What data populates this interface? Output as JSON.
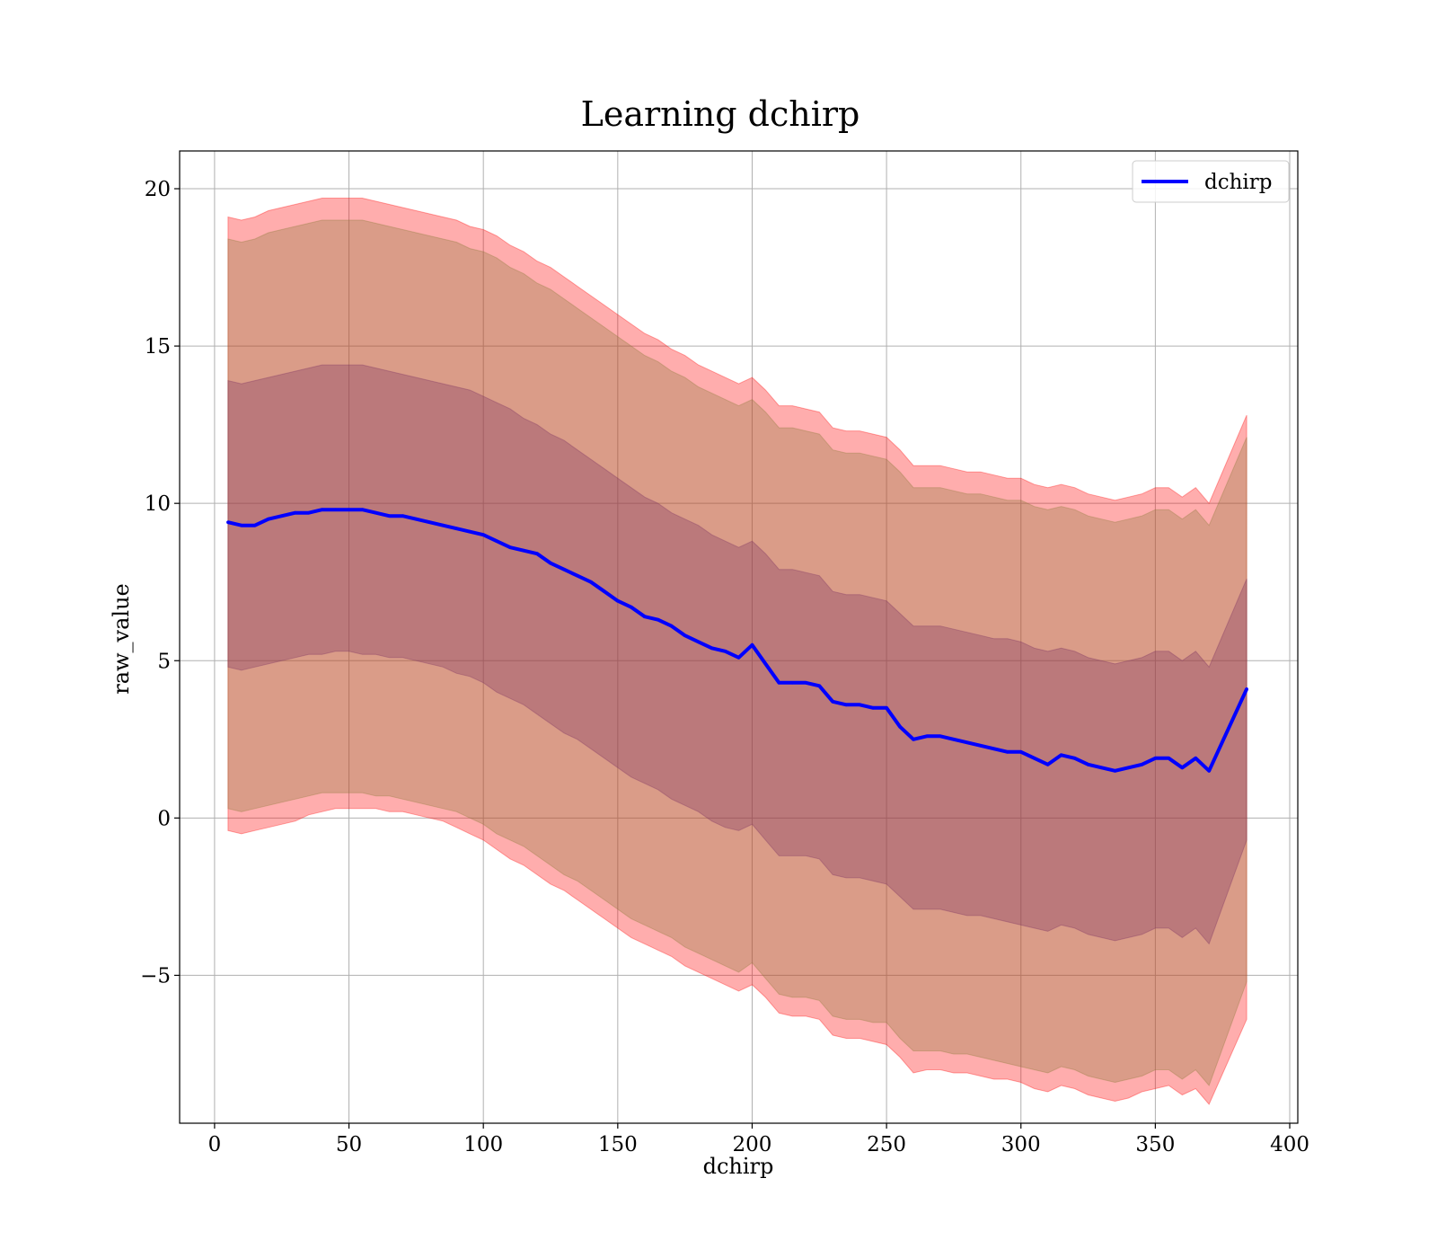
{
  "chart_data": {
    "type": "line",
    "title": "Learning dchirp",
    "xlabel": "dchirp",
    "ylabel": "raw_value",
    "xlim": [
      -13,
      403
    ],
    "ylim": [
      -9.7,
      21.2
    ],
    "xticks": [
      0,
      50,
      100,
      150,
      200,
      250,
      300,
      350,
      400
    ],
    "yticks": [
      -5,
      0,
      5,
      10,
      15,
      20
    ],
    "xtick_labels": [
      "0",
      "50",
      "100",
      "150",
      "200",
      "250",
      "300",
      "350",
      "400"
    ],
    "ytick_labels": [
      "−5",
      "0",
      "5",
      "10",
      "15",
      "20"
    ],
    "grid": true,
    "legend_position": "top-right",
    "series": [
      {
        "name": "dchirp",
        "color": "#0000ff",
        "x": [
          5,
          10,
          15,
          20,
          25,
          30,
          35,
          40,
          45,
          50,
          55,
          60,
          65,
          70,
          75,
          80,
          85,
          90,
          95,
          100,
          105,
          110,
          115,
          120,
          125,
          130,
          135,
          140,
          145,
          150,
          155,
          160,
          165,
          170,
          175,
          180,
          185,
          190,
          195,
          200,
          205,
          210,
          215,
          220,
          225,
          230,
          235,
          240,
          245,
          250,
          255,
          260,
          265,
          270,
          275,
          280,
          285,
          290,
          295,
          300,
          305,
          310,
          315,
          320,
          325,
          330,
          335,
          340,
          345,
          350,
          355,
          360,
          365,
          370,
          384
        ],
        "y": [
          9.4,
          9.3,
          9.3,
          9.5,
          9.6,
          9.7,
          9.7,
          9.8,
          9.8,
          9.8,
          9.8,
          9.7,
          9.6,
          9.6,
          9.5,
          9.4,
          9.3,
          9.2,
          9.1,
          9.0,
          8.8,
          8.6,
          8.5,
          8.4,
          8.1,
          7.9,
          7.7,
          7.5,
          7.2,
          6.9,
          6.7,
          6.4,
          6.3,
          6.1,
          5.8,
          5.6,
          5.4,
          5.3,
          5.1,
          5.5,
          4.9,
          4.3,
          4.3,
          4.3,
          4.2,
          3.7,
          3.6,
          3.6,
          3.5,
          3.5,
          2.9,
          2.5,
          2.6,
          2.6,
          2.5,
          2.4,
          2.3,
          2.2,
          2.1,
          2.1,
          1.9,
          1.7,
          2.0,
          1.9,
          1.7,
          1.6,
          1.5,
          1.6,
          1.7,
          1.9,
          1.9,
          1.6,
          1.9,
          1.5,
          4.1
        ],
        "bands": [
          {
            "color": "#ff0000",
            "lower": [
              -0.4,
              -0.5,
              -0.4,
              -0.3,
              -0.2,
              -0.1,
              0.1,
              0.2,
              0.3,
              0.3,
              0.3,
              0.3,
              0.2,
              0.2,
              0.1,
              0.0,
              -0.1,
              -0.3,
              -0.5,
              -0.7,
              -1.0,
              -1.3,
              -1.5,
              -1.8,
              -2.1,
              -2.3,
              -2.6,
              -2.9,
              -3.2,
              -3.5,
              -3.8,
              -4.0,
              -4.2,
              -4.4,
              -4.7,
              -4.9,
              -5.1,
              -5.3,
              -5.5,
              -5.3,
              -5.7,
              -6.2,
              -6.3,
              -6.3,
              -6.4,
              -6.9,
              -7.0,
              -7.0,
              -7.1,
              -7.2,
              -7.6,
              -8.1,
              -8.0,
              -8.0,
              -8.1,
              -8.1,
              -8.2,
              -8.3,
              -8.3,
              -8.4,
              -8.6,
              -8.7,
              -8.5,
              -8.6,
              -8.8,
              -8.9,
              -9.0,
              -8.9,
              -8.7,
              -8.6,
              -8.5,
              -8.8,
              -8.6,
              -9.1,
              -6.4
            ],
            "upper": [
              19.1,
              19.0,
              19.1,
              19.3,
              19.4,
              19.5,
              19.6,
              19.7,
              19.7,
              19.7,
              19.7,
              19.6,
              19.5,
              19.4,
              19.3,
              19.2,
              19.1,
              19.0,
              18.8,
              18.7,
              18.5,
              18.2,
              18.0,
              17.7,
              17.5,
              17.2,
              16.9,
              16.6,
              16.3,
              16.0,
              15.7,
              15.4,
              15.2,
              14.9,
              14.7,
              14.4,
              14.2,
              14.0,
              13.8,
              14.0,
              13.6,
              13.1,
              13.1,
              13.0,
              12.9,
              12.4,
              12.3,
              12.3,
              12.2,
              12.1,
              11.7,
              11.2,
              11.2,
              11.2,
              11.1,
              11.0,
              11.0,
              10.9,
              10.8,
              10.8,
              10.6,
              10.5,
              10.6,
              10.5,
              10.3,
              10.2,
              10.1,
              10.2,
              10.3,
              10.5,
              10.5,
              10.2,
              10.5,
              10.0,
              12.8
            ]
          },
          {
            "color": "#8b7a3a",
            "lower": [
              0.3,
              0.2,
              0.3,
              0.4,
              0.5,
              0.6,
              0.7,
              0.8,
              0.8,
              0.8,
              0.8,
              0.7,
              0.7,
              0.6,
              0.5,
              0.4,
              0.3,
              0.2,
              0.0,
              -0.2,
              -0.5,
              -0.7,
              -0.9,
              -1.2,
              -1.5,
              -1.8,
              -2.0,
              -2.3,
              -2.6,
              -2.9,
              -3.2,
              -3.4,
              -3.6,
              -3.8,
              -4.1,
              -4.3,
              -4.5,
              -4.7,
              -4.9,
              -4.6,
              -5.1,
              -5.6,
              -5.7,
              -5.7,
              -5.8,
              -6.3,
              -6.4,
              -6.4,
              -6.5,
              -6.5,
              -7.0,
              -7.4,
              -7.4,
              -7.4,
              -7.5,
              -7.5,
              -7.6,
              -7.7,
              -7.8,
              -7.9,
              -8.0,
              -8.1,
              -7.9,
              -8.0,
              -8.2,
              -8.3,
              -8.4,
              -8.3,
              -8.2,
              -8.0,
              -8.0,
              -8.3,
              -8.0,
              -8.5,
              -5.2
            ],
            "upper": [
              18.4,
              18.3,
              18.4,
              18.6,
              18.7,
              18.8,
              18.9,
              19.0,
              19.0,
              19.0,
              19.0,
              18.9,
              18.8,
              18.7,
              18.6,
              18.5,
              18.4,
              18.3,
              18.1,
              18.0,
              17.8,
              17.5,
              17.3,
              17.0,
              16.8,
              16.5,
              16.2,
              15.9,
              15.6,
              15.3,
              15.0,
              14.7,
              14.5,
              14.2,
              14.0,
              13.7,
              13.5,
              13.3,
              13.1,
              13.3,
              12.9,
              12.4,
              12.4,
              12.3,
              12.2,
              11.7,
              11.6,
              11.6,
              11.5,
              11.4,
              11.0,
              10.5,
              10.5,
              10.5,
              10.4,
              10.3,
              10.3,
              10.2,
              10.1,
              10.1,
              9.9,
              9.8,
              9.9,
              9.8,
              9.6,
              9.5,
              9.4,
              9.5,
              9.6,
              9.8,
              9.8,
              9.5,
              9.8,
              9.3,
              12.1
            ]
          },
          {
            "color": "#7a3060",
            "lower": [
              4.8,
              4.7,
              4.8,
              4.9,
              5.0,
              5.1,
              5.2,
              5.2,
              5.3,
              5.3,
              5.2,
              5.2,
              5.1,
              5.1,
              5.0,
              4.9,
              4.8,
              4.6,
              4.5,
              4.3,
              4.0,
              3.8,
              3.6,
              3.3,
              3.0,
              2.7,
              2.5,
              2.2,
              1.9,
              1.6,
              1.3,
              1.1,
              0.9,
              0.6,
              0.4,
              0.2,
              -0.1,
              -0.3,
              -0.4,
              -0.2,
              -0.7,
              -1.2,
              -1.2,
              -1.2,
              -1.3,
              -1.8,
              -1.9,
              -1.9,
              -2.0,
              -2.1,
              -2.5,
              -2.9,
              -2.9,
              -2.9,
              -3.0,
              -3.1,
              -3.1,
              -3.2,
              -3.3,
              -3.4,
              -3.5,
              -3.6,
              -3.4,
              -3.5,
              -3.7,
              -3.8,
              -3.9,
              -3.8,
              -3.7,
              -3.5,
              -3.5,
              -3.8,
              -3.5,
              -4.0,
              -0.7
            ],
            "upper": [
              13.9,
              13.8,
              13.9,
              14.0,
              14.1,
              14.2,
              14.3,
              14.4,
              14.4,
              14.4,
              14.4,
              14.3,
              14.2,
              14.1,
              14.0,
              13.9,
              13.8,
              13.7,
              13.6,
              13.4,
              13.2,
              13.0,
              12.7,
              12.5,
              12.2,
              12.0,
              11.7,
              11.4,
              11.1,
              10.8,
              10.5,
              10.2,
              10.0,
              9.7,
              9.5,
              9.3,
              9.0,
              8.8,
              8.6,
              8.8,
              8.4,
              7.9,
              7.9,
              7.8,
              7.7,
              7.2,
              7.1,
              7.1,
              7.0,
              6.9,
              6.5,
              6.1,
              6.1,
              6.1,
              6.0,
              5.9,
              5.8,
              5.7,
              5.7,
              5.6,
              5.4,
              5.3,
              5.4,
              5.3,
              5.1,
              5.0,
              4.9,
              5.0,
              5.1,
              5.3,
              5.3,
              5.0,
              5.3,
              4.8,
              7.6
            ]
          }
        ]
      }
    ]
  }
}
